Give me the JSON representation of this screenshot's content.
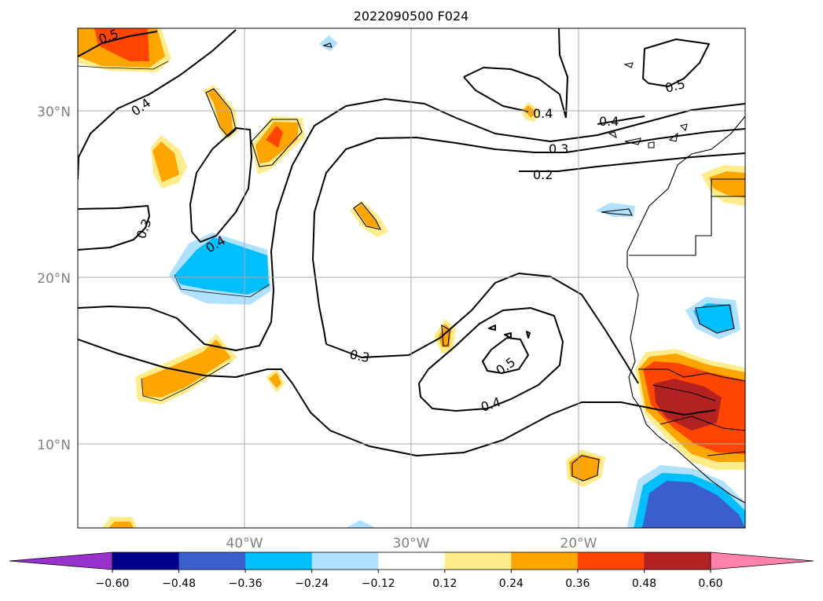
{
  "map": {
    "title": "2022090500 F024",
    "lat_labels": [
      "30°N",
      "20°N",
      "10°N"
    ],
    "lon_labels": [
      "40°W",
      "30°W",
      "20°W"
    ],
    "contour_labels": [
      "0.5",
      "0.4",
      "0.3",
      "0.4",
      "0.4",
      "0.3",
      "0.2",
      "0.4",
      "0.5",
      "0.3",
      "0.5",
      "0.4"
    ]
  },
  "colorbar": {
    "ticks": [
      "−0.60",
      "−0.48",
      "−0.36",
      "−0.24",
      "−0.12",
      "0.12",
      "0.24",
      "0.36",
      "0.48",
      "0.60"
    ],
    "colors": {
      "under": "#9932cc",
      "c1": "#00008b",
      "c2": "#3a5fcd",
      "c3": "#00bfff",
      "c4": "#b0e2ff",
      "c5": "#ffffff",
      "c6": "#ffec8b",
      "c7": "#ffa500",
      "c8": "#ff4500",
      "c9": "#b22222",
      "c10": "#ff82ab",
      "over": "#ff82ab"
    }
  }
}
